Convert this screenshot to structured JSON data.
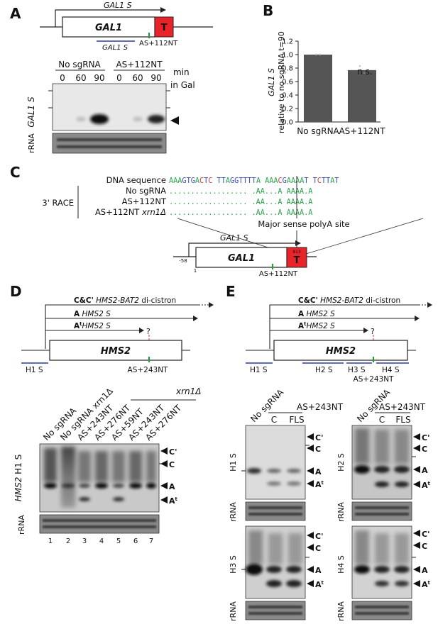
{
  "panels": {
    "a": "A",
    "b": "B",
    "c": "C",
    "d": "D",
    "e": "E"
  },
  "colors": {
    "terminator": "#e8242a",
    "marker": "#1a9e3a",
    "probe": "#2b3a9b",
    "bar": "#555555",
    "adenine": "#2aa34a",
    "cytosine": "#d13b3b",
    "guanine": "#3a4fb0",
    "thymine": "#3a4fb0"
  },
  "panelA": {
    "transcript": "GAL1 S",
    "gene": "GAL1",
    "terminator": "T",
    "probe": "GAL1 S",
    "marker": "AS+112NT",
    "group1": "No sgRNA",
    "group2": "AS+112NT",
    "times1": [
      "0",
      "60",
      "90"
    ],
    "times2": [
      "0",
      "60",
      "90"
    ],
    "unit_line1": "min",
    "unit_line2": "in Gal",
    "blot_label": "GAL1 S",
    "rrna_label": "rRNA"
  },
  "panelB": {
    "ylabel_line1": "GAL1 S",
    "ylabel_line2": "relative to no sgRNA t=90",
    "significance": "n.s.",
    "chart_data": {
      "type": "bar",
      "categories": [
        "No sgRNA",
        "AS+112NT"
      ],
      "values": [
        1.0,
        0.77
      ],
      "points": [
        [
          1.0,
          1.0
        ],
        [
          0.83,
          0.72
        ]
      ],
      "ylim": [
        0.0,
        1.2
      ],
      "yticks": [
        "0.0",
        "0.2",
        "0.4",
        "0.6",
        "0.8",
        "1.0",
        "1.2"
      ],
      "grid": false
    }
  },
  "panelC": {
    "race_label": "3' RACE",
    "row_labels": [
      "DNA sequence",
      "No sgRNA",
      "AS+112NT",
      "AS+112NT"
    ],
    "row4_suffix": "xrn1Δ",
    "sequence": "AAAGTGACTC TTAGGTTTTA AAACGAAAAT TCTTAT",
    "alignments": [
      ".................. .AA...A AAAA.A",
      ".................. .AA...A AAAA.A",
      ".................. .AA...A AAAA.A"
    ],
    "polyA_label": "Major sense polyA site",
    "transcript": "GAL1 S",
    "gene": "GAL1",
    "terminator": "T",
    "terminator_sub": "813",
    "coord_start": "-58",
    "coord_one": "1",
    "marker": "AS+112NT"
  },
  "panelD": {
    "cc_bold": "C&C'",
    "cc_text": "HMS2-BAT2",
    "cc_suffix": "di-cistron",
    "a_bold": "A",
    "a_text": "HMS2 S",
    "at_bold": "A",
    "at_sup": "t",
    "at_text": "HMS2 S",
    "question": "?",
    "gene": "HMS2",
    "probe": "H1 S",
    "marker": "AS+243NT",
    "lanes": [
      "No sgRNA",
      "No sgRNA xrn1Δ",
      "AS+243NT",
      "AS+276NT",
      "AS+59NT",
      "AS+243NT",
      "AS+276NT"
    ],
    "xrn_label": "xrn1Δ",
    "blot_label_gene": "HMS2",
    "blot_label_probe": "H1 S",
    "rrna_label": "rRNA",
    "bands": [
      "C'",
      "C",
      "A",
      "A"
    ],
    "band_sup": "t",
    "lane_numbers": [
      "1",
      "2",
      "3",
      "4",
      "5",
      "6",
      "7"
    ]
  },
  "panelE": {
    "cc_bold": "C&C'",
    "cc_text": "HMS2-BAT2",
    "cc_suffix": "di-cistron",
    "a_bold": "A",
    "a_text": "HMS2 S",
    "at_bold": "A",
    "at_sup": "t",
    "at_text": "HMS2 S",
    "question": "?",
    "gene": "HMS2",
    "probes": [
      "H1 S",
      "H2 S",
      "H3 S",
      "H4 S"
    ],
    "marker": "AS+243NT",
    "col_nosg": "No sgRNA",
    "col_group": "AS+243NT",
    "col_c": "C",
    "col_fls": "FLS",
    "blots": [
      {
        "label": "H1 S",
        "rrna": "rRNA"
      },
      {
        "label": "H2 S",
        "rrna": "rRNA"
      },
      {
        "label": "H3 S",
        "rrna": "rRNA"
      },
      {
        "label": "H4 S",
        "rrna": "rRNA"
      }
    ],
    "bands": [
      "C'",
      "C",
      "A",
      "A"
    ],
    "band_sup": "t"
  }
}
